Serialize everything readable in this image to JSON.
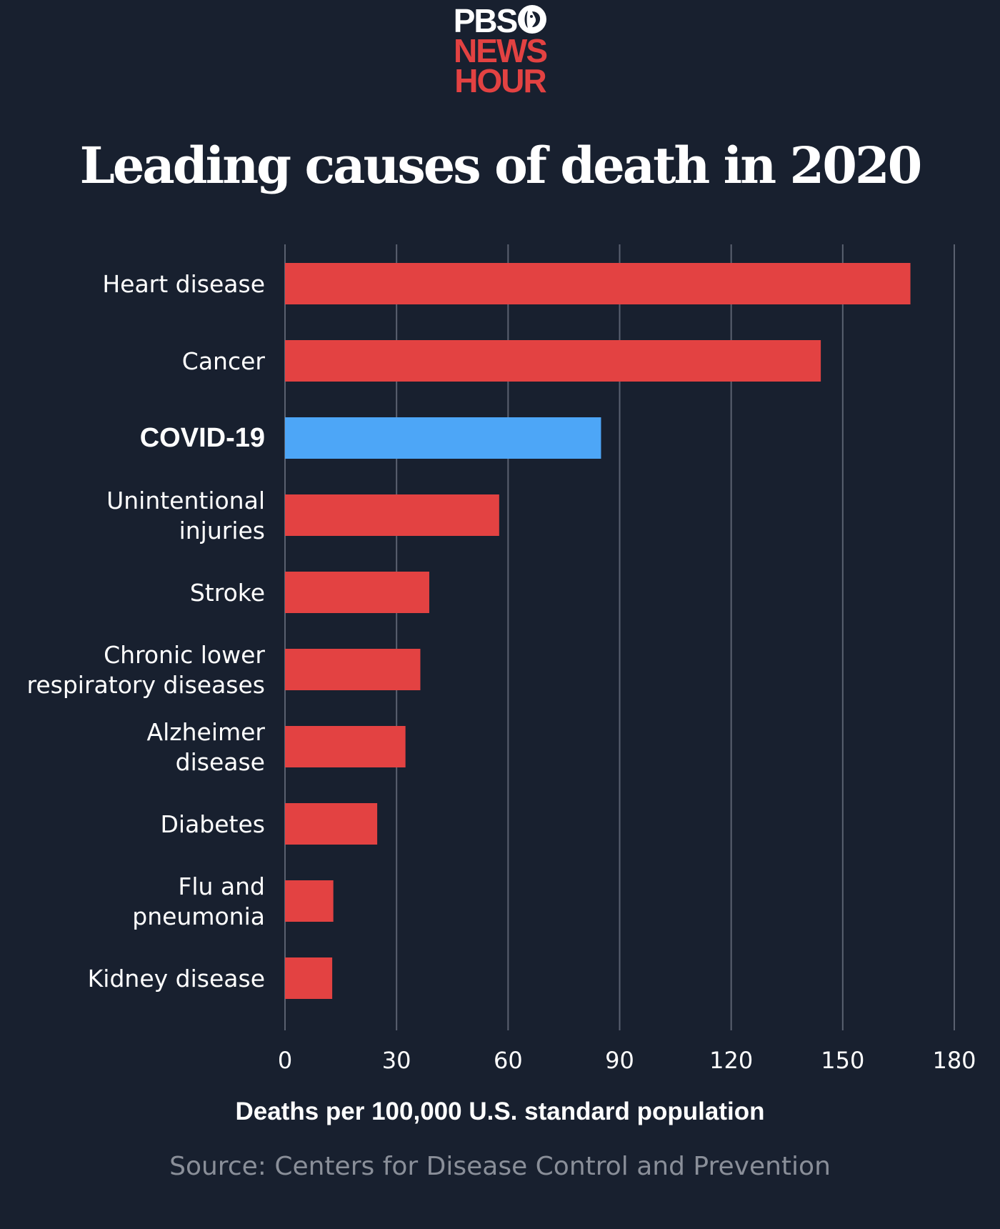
{
  "logo": {
    "line1": "PBS",
    "line2": "NEWS",
    "line3": "HOUR"
  },
  "colors": {
    "background": "#18202f",
    "bar_default": "#e34242",
    "bar_highlight": "#4da6f7",
    "gridline": "#5a6170",
    "text": "#ffffff",
    "source_text": "#8a8f99"
  },
  "chart_data": {
    "type": "bar",
    "orientation": "horizontal",
    "title": "Leading causes of death in 2020",
    "xlabel": "Deaths per 100,000 U.S. standard population",
    "ylabel": "",
    "source": "Source: Centers for Disease Control and Prevention",
    "xlim": [
      0,
      180
    ],
    "xticks": [
      0,
      30,
      60,
      90,
      120,
      150,
      180
    ],
    "grid": true,
    "highlight_category": "COVID-19",
    "categories": [
      [
        "Heart disease"
      ],
      [
        "Cancer"
      ],
      [
        "COVID-19"
      ],
      [
        "Unintentional",
        "injuries"
      ],
      [
        "Stroke"
      ],
      [
        "Chronic lower",
        "respiratory diseases"
      ],
      [
        "Alzheimer",
        "disease"
      ],
      [
        "Diabetes"
      ],
      [
        "Flu and",
        "pneumonia"
      ],
      [
        "Kidney disease"
      ]
    ],
    "values": [
      168.2,
      144.1,
      85.0,
      57.6,
      38.8,
      36.4,
      32.4,
      24.8,
      13.0,
      12.7
    ]
  }
}
